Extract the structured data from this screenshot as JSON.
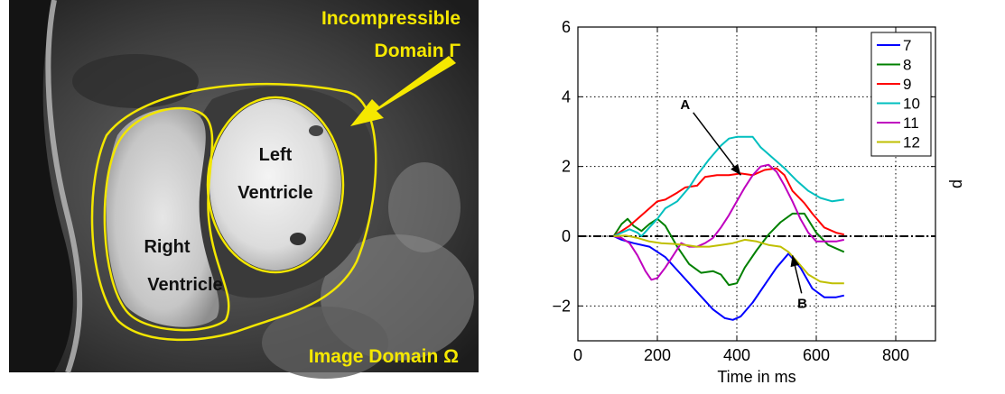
{
  "mri_image": {
    "labels": {
      "incompressible_line1": "Incompressible",
      "incompressible_line2": "Domain Γ",
      "left_line1": "Left",
      "left_line2": "Ventricle",
      "right_line1": "Right",
      "right_line2": "Ventricle",
      "image_domain": "Image Domain Ω"
    },
    "colors": {
      "contour": "#f2e600",
      "label": "#f5e800",
      "ventricle_text": "#111111"
    }
  },
  "chart_data": {
    "type": "line",
    "xlabel": "Time in ms",
    "ylabel": "p",
    "xlim": [
      0,
      900
    ],
    "ylim": [
      -3,
      6
    ],
    "xticks": [
      0,
      200,
      400,
      600,
      800
    ],
    "yticks": [
      -2,
      0,
      2,
      4,
      6
    ],
    "xtick_labels": [
      "0",
      "200",
      "400",
      "600",
      "800"
    ],
    "ytick_labels": [
      "−2",
      "0",
      "2",
      "4",
      "6"
    ],
    "grid": true,
    "legend_position": "top-right",
    "reference_line_y": 0,
    "series": [
      {
        "name": "7",
        "color": "#0000ff",
        "x": [
          90,
          110,
          140,
          180,
          220,
          260,
          300,
          340,
          370,
          390,
          410,
          440,
          470,
          500,
          530,
          560,
          590,
          620,
          650,
          670
        ],
        "y": [
          0,
          -0.1,
          -0.2,
          -0.3,
          -0.6,
          -1.1,
          -1.6,
          -2.1,
          -2.35,
          -2.4,
          -2.3,
          -1.9,
          -1.4,
          -0.9,
          -0.5,
          -0.9,
          -1.5,
          -1.75,
          -1.75,
          -1.7
        ]
      },
      {
        "name": "8",
        "color": "#008000",
        "x": [
          90,
          110,
          125,
          140,
          160,
          180,
          200,
          220,
          250,
          280,
          310,
          340,
          360,
          380,
          400,
          420,
          450,
          480,
          510,
          540,
          570,
          600,
          630,
          670
        ],
        "y": [
          0,
          0.35,
          0.5,
          0.3,
          0.15,
          0.35,
          0.5,
          0.3,
          -0.3,
          -0.8,
          -1.05,
          -1.0,
          -1.1,
          -1.4,
          -1.35,
          -0.9,
          -0.4,
          0.05,
          0.4,
          0.65,
          0.65,
          0.1,
          -0.25,
          -0.45
        ]
      },
      {
        "name": "9",
        "color": "#ff0000",
        "x": [
          90,
          110,
          130,
          150,
          180,
          200,
          220,
          250,
          270,
          300,
          320,
          350,
          380,
          410,
          440,
          470,
          500,
          520,
          540,
          570,
          590,
          620,
          650,
          670
        ],
        "y": [
          0,
          0.15,
          0.3,
          0.5,
          0.8,
          1.0,
          1.05,
          1.25,
          1.4,
          1.45,
          1.7,
          1.75,
          1.75,
          1.8,
          1.75,
          1.9,
          1.95,
          1.75,
          1.3,
          0.95,
          0.65,
          0.25,
          0.1,
          0.05
        ]
      },
      {
        "name": "10",
        "color": "#00bfbf",
        "x": [
          90,
          110,
          130,
          150,
          160,
          180,
          200,
          220,
          250,
          280,
          300,
          330,
          360,
          380,
          400,
          420,
          440,
          460,
          490,
          520,
          550,
          580,
          610,
          640,
          670
        ],
        "y": [
          0,
          0.1,
          0.2,
          0.1,
          0.0,
          0.25,
          0.5,
          0.8,
          1.0,
          1.4,
          1.75,
          2.2,
          2.6,
          2.8,
          2.85,
          2.85,
          2.85,
          2.55,
          2.25,
          1.95,
          1.6,
          1.3,
          1.1,
          1.0,
          1.05
        ]
      },
      {
        "name": "11",
        "color": "#bf00bf",
        "x": [
          90,
          110,
          130,
          150,
          170,
          185,
          200,
          220,
          240,
          260,
          280,
          300,
          320,
          340,
          360,
          380,
          400,
          420,
          440,
          460,
          480,
          500,
          520,
          540,
          560,
          580,
          600,
          620,
          650,
          670
        ],
        "y": [
          0,
          -0.05,
          -0.2,
          -0.55,
          -1.0,
          -1.25,
          -1.2,
          -0.9,
          -0.55,
          -0.2,
          -0.3,
          -0.3,
          -0.2,
          -0.05,
          0.25,
          0.6,
          1.0,
          1.4,
          1.75,
          2.0,
          2.05,
          1.85,
          1.45,
          1.0,
          0.5,
          0.1,
          -0.15,
          -0.15,
          -0.15,
          -0.1
        ]
      },
      {
        "name": "12",
        "color": "#bfbf00",
        "x": [
          90,
          120,
          150,
          180,
          210,
          240,
          270,
          300,
          330,
          360,
          390,
          420,
          450,
          480,
          510,
          530,
          550,
          580,
          610,
          640,
          670
        ],
        "y": [
          0,
          0.02,
          -0.05,
          -0.15,
          -0.2,
          -0.22,
          -0.25,
          -0.3,
          -0.3,
          -0.25,
          -0.2,
          -0.1,
          -0.15,
          -0.25,
          -0.3,
          -0.45,
          -0.7,
          -1.1,
          -1.3,
          -1.35,
          -1.35
        ]
      }
    ],
    "annotations": [
      {
        "text": "A",
        "text_x": 270,
        "text_y": 3.65,
        "target_x": 410,
        "target_y": 1.75
      },
      {
        "text": "B",
        "text_x": 565,
        "text_y": -2.05,
        "target_x": 540,
        "target_y": -0.55
      }
    ]
  }
}
